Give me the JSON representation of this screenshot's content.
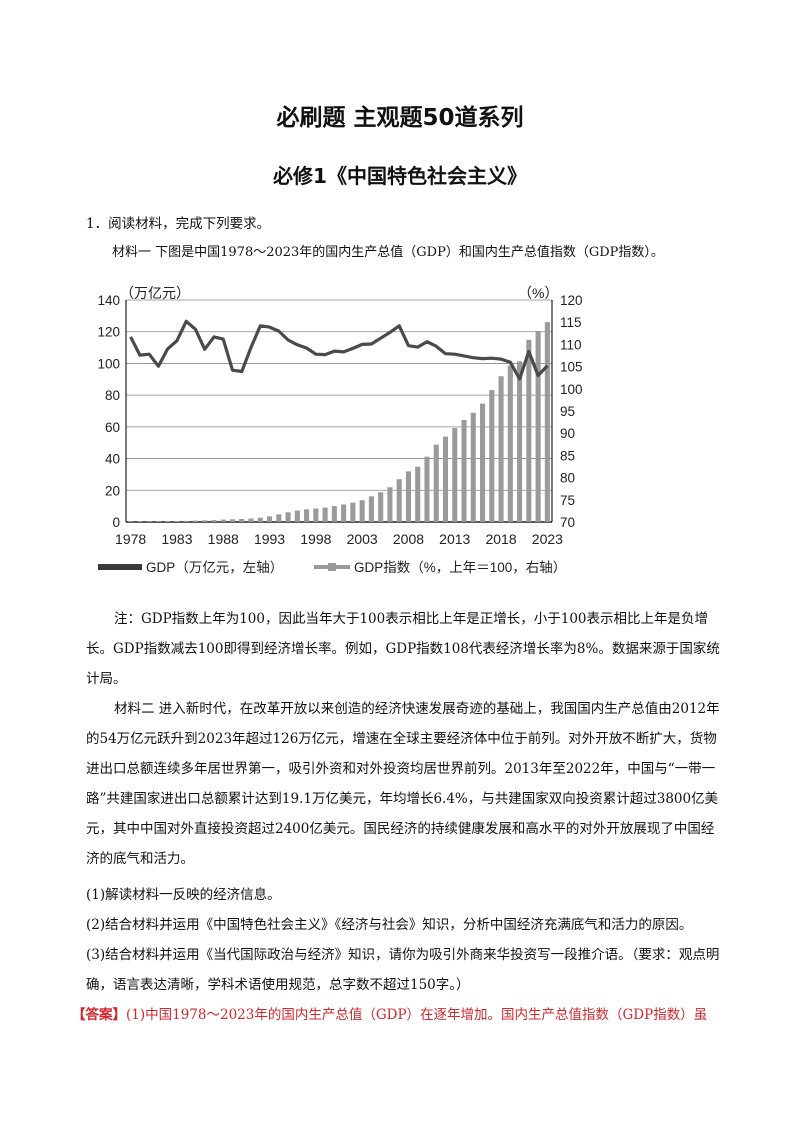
{
  "header": {
    "title": "必刷题 主观题50道系列",
    "subtitle": "必修1《中国特色社会主义》"
  },
  "question": {
    "number_line": "1．阅读材料，完成下列要求。",
    "material1_intro": "材料一 下图是中国1978～2023年的国内生产总值（GDP）和国内生产总值指数（GDP指数）。",
    "note": "注：GDP指数上年为100，因此当年大于100表示相比上年是正增长，小于100表示相比上年是负增长。GDP指数减去100即得到经济增长率。例如，GDP指数108代表经济增长率为8%。数据来源于国家统计局。",
    "material2": "材料二 进入新时代，在改革开放以来创造的经济快速发展奇迹的基础上，我国国内生产总值由2012年的54万亿元跃升到2023年超过126万亿元，增速在全球主要经济体中位于前列。对外开放不断扩大，货物进出口总额连续多年居世界第一，吸引外资和对外投资均居世界前列。2013年至2022年，中国与“一带一路”共建国家进出口总额累计达到19.1万亿美元，年均增长6.4%，与共建国家双向投资累计超过3800亿美元，其中中国对外直接投资超过2400亿美元。国民经济的持续健康发展和高水平的对外开放展现了中国经济的底气和活力。",
    "q1": "(1)解读材料一反映的经济信息。",
    "q2": "(2)结合材料并运用《中国特色社会主义》《经济与社会》知识，分析中国经济充满底气和活力的原因。",
    "q3": "(3)结合材料并运用《当代国际政治与经济》知识，请你为吸引外商来华投资写一段推介语。（要求：观点明确，语言表达清晰，学科术语使用规范，总字数不超过150字。）",
    "answer_tag": "【答案】",
    "answer_text": "(1)中国1978～2023年的国内生产总值（GDP）在逐年增加。国内生产总值指数（GDP指数）虽"
  },
  "chart_data": {
    "type": "bar+line",
    "left_axis_unit": "（万亿元）",
    "right_axis_unit": "（%）",
    "left_ticks": [
      "0",
      "20",
      "40",
      "60",
      "80",
      "100",
      "120",
      "140"
    ],
    "right_ticks": [
      "70",
      "75",
      "80",
      "85",
      "90",
      "95",
      "100",
      "105",
      "110",
      "115",
      "120"
    ],
    "x_ticks": [
      "1978",
      "1983",
      "1988",
      "1993",
      "1998",
      "2003",
      "2008",
      "2013",
      "2018",
      "2023"
    ],
    "ylim_left": [
      0,
      140
    ],
    "ylim_right": [
      70,
      120
    ],
    "years": [
      1978,
      1979,
      1980,
      1981,
      1982,
      1983,
      1984,
      1985,
      1986,
      1987,
      1988,
      1989,
      1990,
      1991,
      1992,
      1993,
      1994,
      1995,
      1996,
      1997,
      1998,
      1999,
      2000,
      2001,
      2002,
      2003,
      2004,
      2005,
      2006,
      2007,
      2008,
      2009,
      2010,
      2011,
      2012,
      2013,
      2014,
      2015,
      2016,
      2017,
      2018,
      2019,
      2020,
      2021,
      2022,
      2023
    ],
    "series": [
      {
        "name": "GDP（万亿元，左轴）",
        "axis": "left",
        "values": [
          0.37,
          0.41,
          0.46,
          0.49,
          0.54,
          0.6,
          0.73,
          0.91,
          1.04,
          1.22,
          1.51,
          1.72,
          1.89,
          2.22,
          2.72,
          3.57,
          4.86,
          6.13,
          7.18,
          7.97,
          8.52,
          9.06,
          10.03,
          11.09,
          12.17,
          13.74,
          16.18,
          18.73,
          21.94,
          27.0,
          31.92,
          34.85,
          41.21,
          48.79,
          53.86,
          59.3,
          64.36,
          68.89,
          74.64,
          83.2,
          91.93,
          98.65,
          101.36,
          114.92,
          120.47,
          126.06
        ]
      },
      {
        "name": "GDP指数（%，上年=100，右轴）",
        "axis": "right",
        "values": [
          111.7,
          107.6,
          107.8,
          105.1,
          109.0,
          110.8,
          115.2,
          113.4,
          108.9,
          111.7,
          111.2,
          104.2,
          103.9,
          109.3,
          114.2,
          113.9,
          113.0,
          111.0,
          109.9,
          109.2,
          107.8,
          107.7,
          108.5,
          108.3,
          109.1,
          110.0,
          110.1,
          111.4,
          112.7,
          114.2,
          109.7,
          109.4,
          110.6,
          109.6,
          107.9,
          107.8,
          107.4,
          107.0,
          106.8,
          106.9,
          106.7,
          106.0,
          102.2,
          108.4,
          103.0,
          105.2
        ]
      }
    ],
    "colors": {
      "gdp_bar": "#9a9a9a",
      "index_line": "#4a4a4a",
      "legend_gdp": "#3a3a3a",
      "legend_index": "#999999"
    },
    "legend": [
      "GDP（万亿元，左轴）",
      "GDP指数（%，上年＝100，右轴）"
    ],
    "legend_position": "bottom",
    "grid": true
  }
}
